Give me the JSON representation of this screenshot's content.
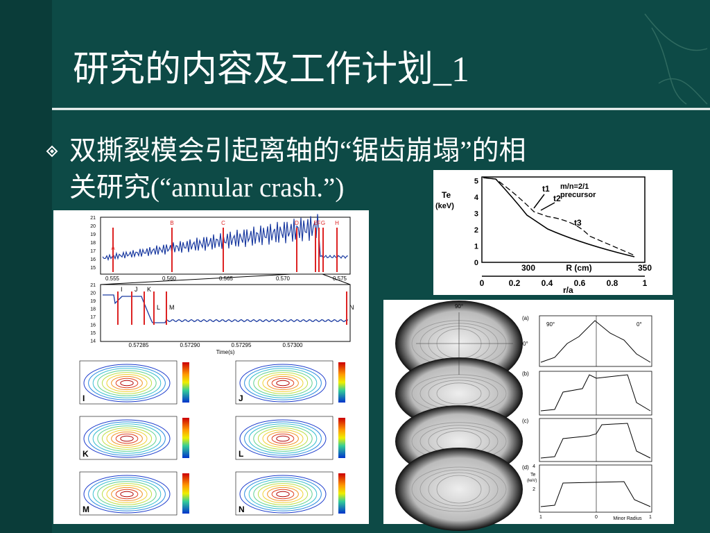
{
  "header": {
    "title": "研究的内容及工作计划_1"
  },
  "bullets": [
    {
      "lines": [
        "双撕裂模会引起离轴的“锯齿崩塌”的相",
        "关研究(“annular crash.”)"
      ]
    }
  ],
  "fig_sxr": {
    "top_letters": [
      "A",
      "B",
      "C",
      "D",
      "E",
      "F",
      "G",
      "H"
    ],
    "top_yticks": [
      "21",
      "20",
      "19",
      "18",
      "17",
      "16",
      "15"
    ],
    "top_xticks": [
      "0.555",
      "0.560",
      "0.565",
      "0.570",
      "0.575"
    ],
    "zoom_letters": [
      "I",
      "J",
      "K",
      "L",
      "M",
      "N"
    ],
    "zoom_yticks": [
      "21",
      "20",
      "19",
      "18",
      "17",
      "16",
      "15",
      "14"
    ],
    "zoom_xticks": [
      "0.57285",
      "0.57290",
      "0.57295",
      "0.57300"
    ],
    "x_label": "Time(s)",
    "panel_letters": [
      "I",
      "J",
      "K",
      "L",
      "M",
      "N"
    ]
  },
  "fig_profile": {
    "y_label": "Te",
    "y_unit": "(keV)",
    "note": [
      "m/n=2/1",
      "precursor"
    ],
    "times": [
      "t1",
      "t2",
      "t3"
    ],
    "yticks": [
      "0",
      "1",
      "2",
      "3",
      "4",
      "5"
    ],
    "r_ticks": [
      "300",
      "350"
    ],
    "r_label": "R (cm)",
    "ra_ticks": [
      "0",
      "0.2",
      "0.4",
      "0.6",
      "0.8",
      "1"
    ],
    "ra_label": "r/a"
  },
  "fig_tomo": {
    "angle_top": "90°",
    "angle_right": "0°",
    "panels": [
      "(a)",
      "(b)",
      "(c)",
      "(d)"
    ],
    "a_left": "90°",
    "a_right": "0°",
    "te_label": "Te",
    "te_unit": "(keV)",
    "te_ticks": [
      "4",
      "2"
    ],
    "x_ticks": [
      "1",
      "0",
      "1"
    ],
    "x_label": "Minor Radius"
  }
}
